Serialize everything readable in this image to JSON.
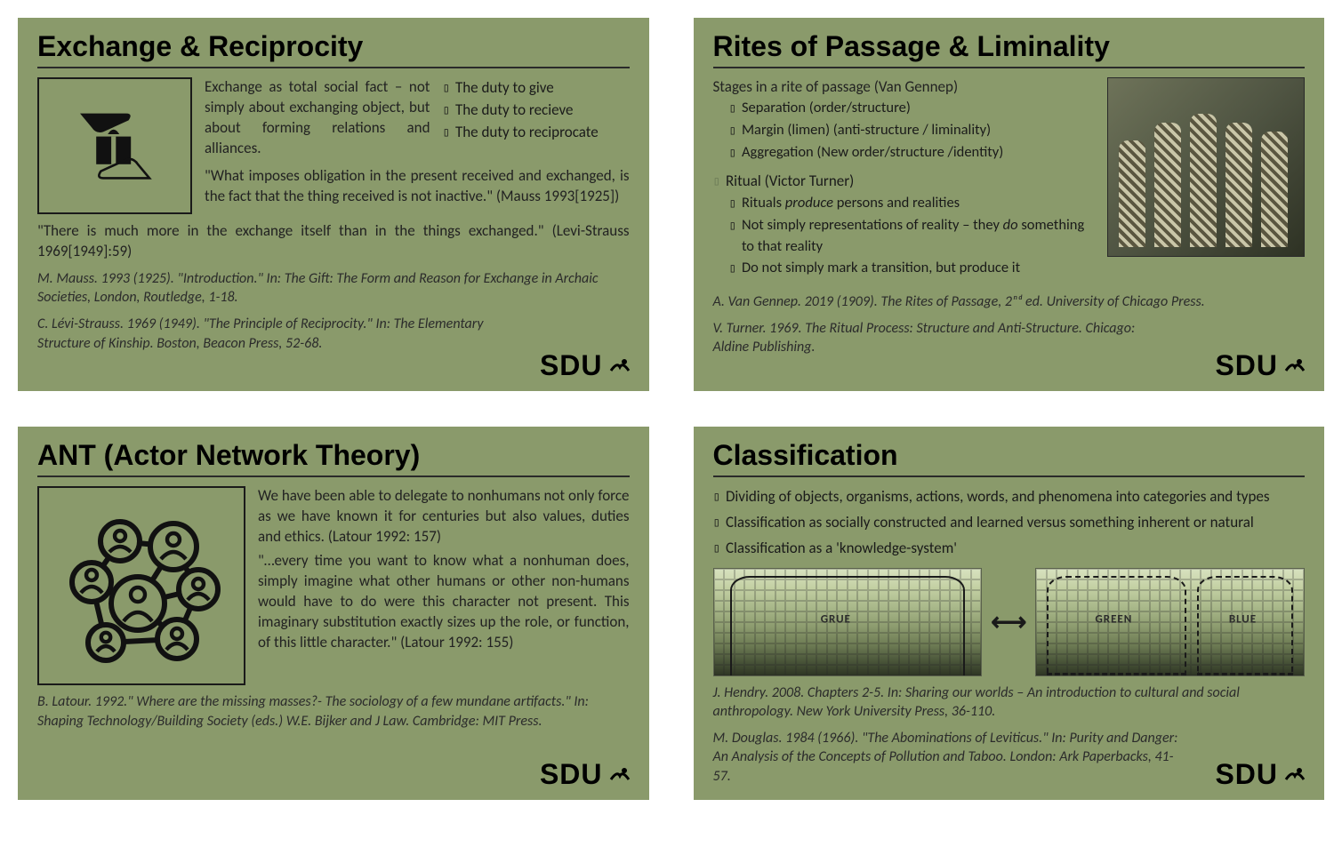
{
  "brand": "SDU",
  "colors": {
    "slide_bg": "#8a9a6b",
    "text": "#1a1a1a",
    "rule": "#2a2a2a"
  },
  "slides": {
    "exchange": {
      "title": "Exchange & Reciprocity",
      "intro": "Exchange as total social fact – not simply about exchanging object, but about forming relations and alliances.",
      "duties": [
        "The duty to give",
        "The duty to recieve",
        "The duty to reciprocate"
      ],
      "quote1": "\"What imposes obligation in the present received and exchanged, is the fact that the thing received is not inactive.\" (Mauss 1993[1925])",
      "quote2": "\"There is much more in the exchange itself than in the things exchanged.\" (Levi-Strauss 1969[1949]:59)",
      "ref1": "M. Mauss. 1993 (1925). \"Introduction.\" In: The Gift: The Form and Reason for Exchange in Archaic Societies, London, Routledge, 1-18.",
      "ref2": "C. Lévi-Strauss. 1969 (1949). \"The Principle of Reciprocity.\" In: The Elementary Structure of Kinship. Boston, Beacon Press, 52-68."
    },
    "rites": {
      "title": "Rites of Passage & Liminality",
      "h1": "Stages in a rite of passage (Van Gennep)",
      "stages": [
        "Separation (order/structure)",
        "Margin (limen) (anti-structure / liminality)",
        "Aggregation (New order/structure /identity)"
      ],
      "h2": "Ritual (Victor Turner)",
      "ritual_a": "Rituals ",
      "ritual_a_em": "produce",
      "ritual_a2": " persons and realities",
      "ritual_b": "Not simply representations of reality  – they ",
      "ritual_b_em": "do",
      "ritual_b2": " something to that reality",
      "ritual_c": "Do not simply mark a transition, but produce it",
      "ref1": "A. Van Gennep. 2019 (1909). The Rites of Passage, 2ⁿᵈ ed. University of Chicago Press.",
      "ref2": "V. Turner. 1969. The Ritual Process: Structure and Anti-Structure. Chicago: Aldine Publishing."
    },
    "ant": {
      "title": "ANT (Actor Network Theory)",
      "p1": " We have been able to delegate to nonhumans not only force as we have known it for centuries but also values, duties and ethics. (Latour 1992: 157)",
      "p2": "\"…every time you want to know what a nonhuman does, simply imagine what other humans or other non-humans would have to do were this character not present. This imaginary substitution exactly sizes up the role, or function, of this little character.\" (Latour 1992: 155)",
      "ref1": "B. Latour. 1992.\" Where are the missing masses?- The sociology of a few mundane artifacts.\"  In: Shaping Technology/Building Society (eds.) W.E. Bijker and J Law. Cambridge: MIT Press."
    },
    "classif": {
      "title": "Classification",
      "bullets": [
        "Dividing of objects, organisms, actions, words, and phenomena into categories and types",
        "Classification as socially constructed and learned versus something inherent or natural",
        "Classification as a 'knowledge-system'"
      ],
      "labels": {
        "grue": "GRUE",
        "green": "GREEN",
        "blue": "BLUE"
      },
      "ref1": "J. Hendry. 2008. Chapters 2-5. In: Sharing our worlds – An introduction to cultural and social anthropology. New York University Press, 36-110.",
      "ref2": "M. Douglas. 1984 (1966). \"The Abominations of Leviticus.\" In: Purity and Danger: An Analysis of the Concepts of Pollution and Taboo. London: Ark Paperbacks, 41-57."
    }
  }
}
